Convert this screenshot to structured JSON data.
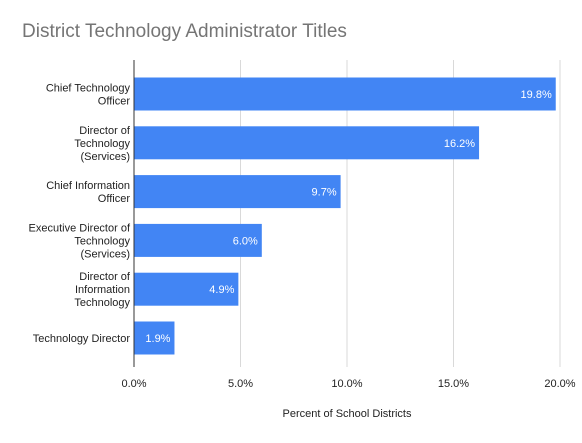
{
  "chart_data": {
    "type": "bar",
    "orientation": "horizontal",
    "title": "District Technology Administrator Titles",
    "xlabel": "Percent of School Districts",
    "ylabel": "",
    "xlim": [
      0,
      20
    ],
    "x_ticks": [
      "0.0%",
      "5.0%",
      "10.0%",
      "15.0%",
      "20.0%"
    ],
    "x_tick_values": [
      0,
      5,
      10,
      15,
      20
    ],
    "grid": true,
    "legend": "none",
    "bar_color": "#4285f4",
    "categories": [
      [
        "Chief Technology",
        "Officer"
      ],
      [
        "Director of",
        "Technology",
        "(Services)"
      ],
      [
        "Chief Information",
        "Officer"
      ],
      [
        "Executive Director of",
        "Technology",
        "(Services)"
      ],
      [
        "Director of",
        "Information",
        "Technology"
      ],
      [
        "Technology Director"
      ]
    ],
    "values": [
      19.8,
      16.2,
      9.7,
      6.0,
      4.9,
      1.9
    ],
    "data_labels": [
      "19.8%",
      "16.2%",
      "9.7%",
      "6.0%",
      "4.9%",
      "1.9%"
    ]
  }
}
